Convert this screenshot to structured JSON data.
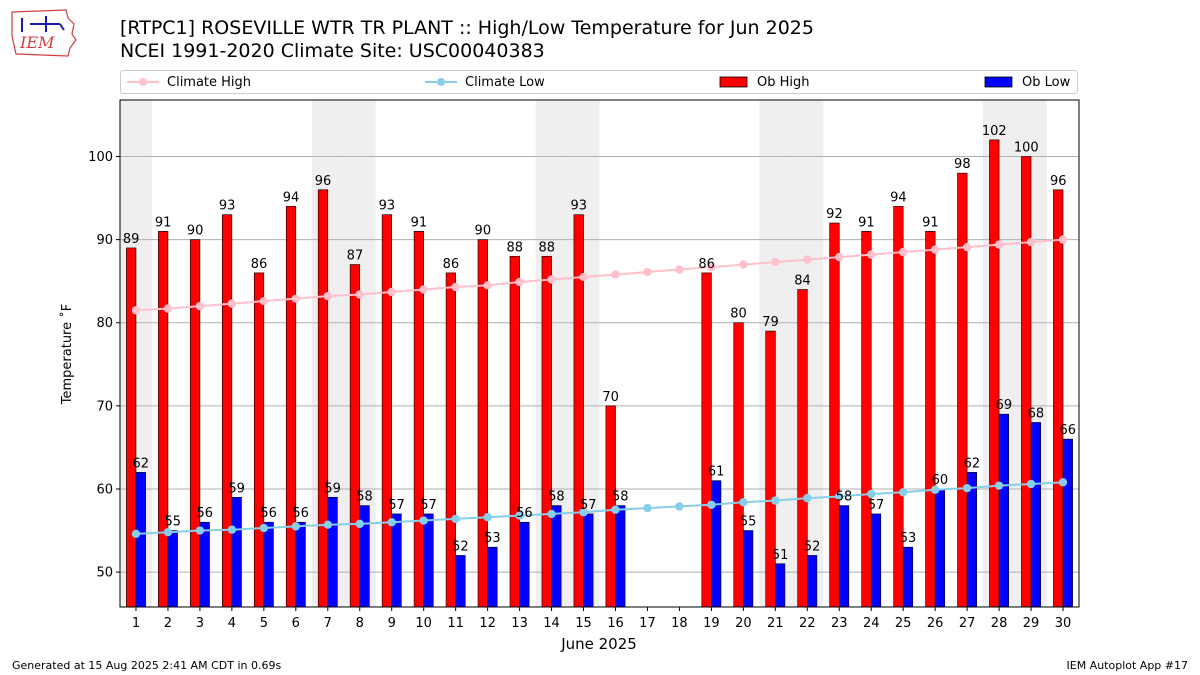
{
  "header": {
    "title_line1": "[RTPC1] ROSEVILLE WTR TR PLANT :: High/Low Temperature for Jun 2025",
    "title_line2": "NCEI 1991-2020 Climate Site: USC00040383",
    "logo_text": "IEM"
  },
  "legend": {
    "items": [
      {
        "label": "Climate High",
        "kind": "line",
        "color": "#ffc0cb"
      },
      {
        "label": "Climate Low",
        "kind": "line",
        "color": "#87ceeb"
      },
      {
        "label": "Ob High",
        "kind": "bar",
        "color": "#ff0000"
      },
      {
        "label": "Ob Low",
        "kind": "bar",
        "color": "#0000ff"
      }
    ]
  },
  "chart_data": {
    "type": "bar",
    "title": "[RTPC1] ROSEVILLE WTR TR PLANT :: High/Low Temperature for Jun 2025",
    "subtitle": "NCEI 1991-2020 Climate Site: USC00040383",
    "xlabel": "June 2025",
    "ylabel": "Temperature ˚F",
    "ylim": [
      45.8,
      106.8
    ],
    "yticks": [
      50,
      60,
      70,
      80,
      90,
      100
    ],
    "grid": "horizontal",
    "legend_position": "top",
    "weekend_shading_days": [
      1,
      7,
      8,
      14,
      15,
      21,
      22,
      28,
      29
    ],
    "categories": [
      1,
      2,
      3,
      4,
      5,
      6,
      7,
      8,
      9,
      10,
      11,
      12,
      13,
      14,
      15,
      16,
      17,
      18,
      19,
      20,
      21,
      22,
      23,
      24,
      25,
      26,
      27,
      28,
      29,
      30
    ],
    "series": [
      {
        "name": "Ob High",
        "type": "bar",
        "color": "#ff0000",
        "values": [
          89,
          91,
          90,
          93,
          86,
          94,
          96,
          87,
          93,
          91,
          86,
          90,
          88,
          88,
          93,
          70,
          null,
          null,
          86,
          80,
          79,
          84,
          92,
          91,
          94,
          91,
          98,
          102,
          100,
          96
        ],
        "labels": [
          "89",
          "91",
          "90",
          "93",
          "86",
          "94",
          "96",
          "87",
          "93",
          "91",
          "86",
          "90",
          "88",
          "88",
          "93",
          "70",
          "",
          "",
          "86",
          "80",
          "79",
          "84",
          "92",
          "91",
          "94",
          "91",
          "98",
          "102",
          "100",
          "96"
        ]
      },
      {
        "name": "Ob Low",
        "type": "bar",
        "color": "#0000ff",
        "values": [
          62,
          55,
          56,
          59,
          56,
          56,
          59,
          58,
          57,
          57,
          52,
          53,
          56,
          58,
          57,
          58,
          null,
          null,
          61,
          55,
          51,
          52,
          58,
          57,
          53,
          60,
          62,
          69,
          68,
          66
        ],
        "labels": [
          "62",
          "55",
          "56",
          "59",
          "56",
          "56",
          "59",
          "58",
          "57",
          "57",
          "52",
          "53",
          "56",
          "58",
          "57",
          "58",
          "",
          "",
          "61",
          "55",
          "51",
          "52",
          "58",
          "57",
          "53",
          "60",
          "62",
          "69",
          "68",
          "66"
        ]
      },
      {
        "name": "Climate High",
        "type": "line",
        "color": "#ffc0cb",
        "values": [
          81.5,
          81.7,
          82.0,
          82.3,
          82.6,
          82.9,
          83.2,
          83.4,
          83.7,
          84.0,
          84.3,
          84.5,
          84.9,
          85.2,
          85.5,
          85.8,
          86.1,
          86.4,
          86.7,
          87.0,
          87.3,
          87.6,
          87.9,
          88.2,
          88.5,
          88.8,
          89.1,
          89.4,
          89.7,
          90.0
        ]
      },
      {
        "name": "Climate Low",
        "type": "line",
        "color": "#87ceeb",
        "values": [
          54.6,
          54.8,
          55.0,
          55.1,
          55.3,
          55.5,
          55.7,
          55.8,
          56.0,
          56.2,
          56.4,
          56.6,
          56.8,
          57.0,
          57.2,
          57.5,
          57.7,
          57.9,
          58.1,
          58.4,
          58.6,
          58.9,
          59.1,
          59.4,
          59.6,
          59.9,
          60.1,
          60.4,
          60.6,
          60.8
        ]
      }
    ]
  },
  "footer": {
    "generated": "Generated at 15 Aug 2025 2:41 AM CDT in 0.69s",
    "app": "IEM Autoplot App #17"
  }
}
